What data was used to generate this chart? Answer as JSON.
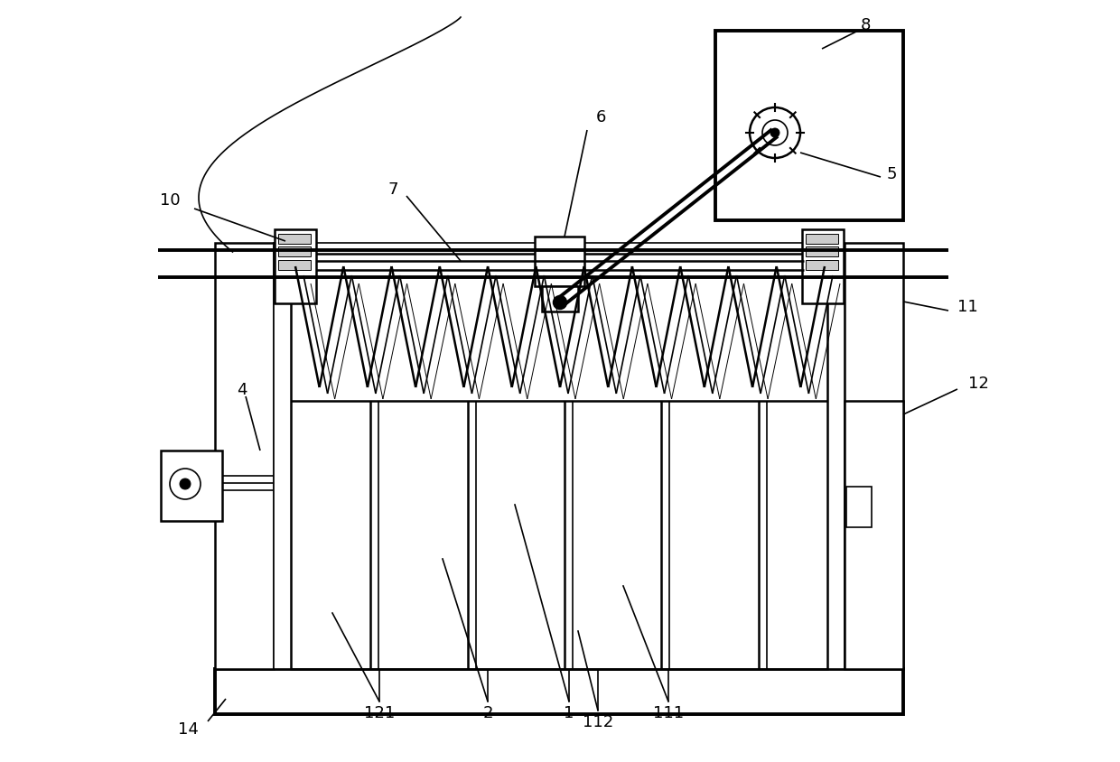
{
  "bg_color": "#ffffff",
  "fig_width": 12.4,
  "fig_height": 8.45,
  "dpi": 100,
  "lw_thick": 2.8,
  "lw_med": 1.8,
  "lw_thin": 1.2,
  "lw_hair": 0.7,
  "label_fs": 13
}
